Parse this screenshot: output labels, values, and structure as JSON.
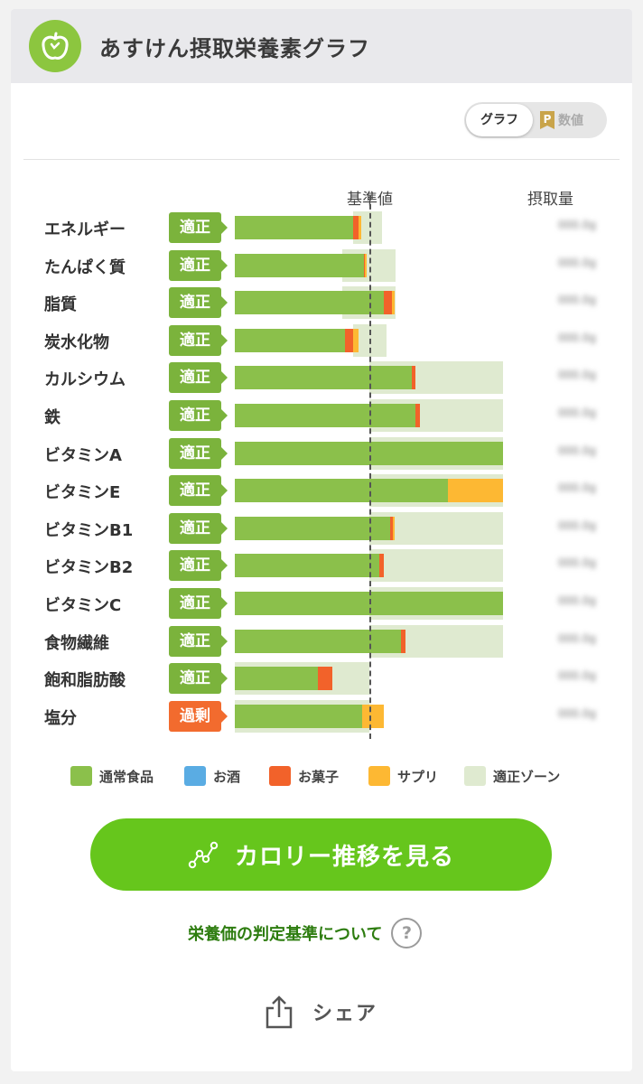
{
  "app": {
    "title": "あすけん摂取栄養素グラフ",
    "logo_icon": "apple-icon"
  },
  "view_toggle": {
    "graph_label": "グラフ",
    "numbers_label": "数値",
    "numbers_badge": "P",
    "selected": "グラフ"
  },
  "colors": {
    "normal_food": "#8bc04b",
    "alcohol": "#5aace3",
    "snack": "#f2622a",
    "supplement": "#fdb833",
    "zone": "#dfead0",
    "cta": "#66c61c",
    "badge_ok": "#7bb33c",
    "badge_over": "#f26b2e"
  },
  "chart_data": {
    "type": "bar",
    "stacked": true,
    "orientation": "horizontal",
    "reference_label": "基準値",
    "intake_label": "摂取量",
    "reference_value": 100,
    "unit": "percent of 基準値",
    "xlim": [
      0,
      200
    ],
    "legend_position": "bottom",
    "series": [
      {
        "name": "通常食品",
        "key": "normal"
      },
      {
        "name": "お酒",
        "key": "alcohol"
      },
      {
        "name": "お菓子",
        "key": "snack"
      },
      {
        "name": "サプリ",
        "key": "supplement"
      },
      {
        "name": "適正ゾーン",
        "key": "zone"
      }
    ],
    "rows": [
      {
        "name": "エネルギー",
        "status": "適正",
        "status_type": "ok",
        "normal": 88,
        "snack": 4,
        "supplement": 2,
        "zone": [
          88,
          110
        ]
      },
      {
        "name": "たんぱく質",
        "status": "適正",
        "status_type": "ok",
        "normal": 96,
        "snack": 1,
        "supplement": 1,
        "zone": [
          80,
          120
        ]
      },
      {
        "name": "脂質",
        "status": "適正",
        "status_type": "ok",
        "normal": 111,
        "snack": 6,
        "supplement": 2,
        "zone": [
          80,
          120
        ]
      },
      {
        "name": "炭水化物",
        "status": "適正",
        "status_type": "ok",
        "normal": 82,
        "snack": 6,
        "supplement": 4,
        "zone": [
          88,
          113
        ]
      },
      {
        "name": "カルシウム",
        "status": "適正",
        "status_type": "ok",
        "normal": 132,
        "snack": 3,
        "supplement": 0,
        "zone": [
          100,
          200
        ]
      },
      {
        "name": "鉄",
        "status": "適正",
        "status_type": "ok",
        "normal": 135,
        "snack": 3,
        "supplement": 0,
        "zone": [
          100,
          200
        ]
      },
      {
        "name": "ビタミンA",
        "status": "適正",
        "status_type": "ok",
        "normal": 200,
        "snack": 0,
        "supplement": 0,
        "zone": [
          100,
          200
        ]
      },
      {
        "name": "ビタミンE",
        "status": "適正",
        "status_type": "ok",
        "normal": 159,
        "snack": 0,
        "supplement": 41,
        "zone": [
          100,
          200
        ]
      },
      {
        "name": "ビタミンB1",
        "status": "適正",
        "status_type": "ok",
        "normal": 116,
        "snack": 2,
        "supplement": 1,
        "zone": [
          100,
          200
        ]
      },
      {
        "name": "ビタミンB2",
        "status": "適正",
        "status_type": "ok",
        "normal": 108,
        "snack": 3,
        "supplement": 0,
        "zone": [
          100,
          200
        ]
      },
      {
        "name": "ビタミンC",
        "status": "適正",
        "status_type": "ok",
        "normal": 200,
        "snack": 0,
        "supplement": 0,
        "zone": [
          100,
          200
        ]
      },
      {
        "name": "食物繊維",
        "status": "適正",
        "status_type": "ok",
        "normal": 124,
        "snack": 3,
        "supplement": 0,
        "zone": [
          100,
          200
        ]
      },
      {
        "name": "飽和脂肪酸",
        "status": "適正",
        "status_type": "ok",
        "normal": 62,
        "snack": 11,
        "supplement": 0,
        "zone": [
          0,
          100
        ]
      },
      {
        "name": "塩分",
        "status": "過剰",
        "status_type": "over",
        "normal": 95,
        "snack": 0,
        "supplement": 16,
        "zone": [
          0,
          100
        ]
      }
    ]
  },
  "cta": {
    "label": "カロリー推移を見る",
    "icon": "line-chart-icon"
  },
  "criteria_link": {
    "label": "栄養価の判定基準について",
    "icon": "question-icon"
  },
  "share": {
    "label": "シェア",
    "icon": "share-icon"
  }
}
